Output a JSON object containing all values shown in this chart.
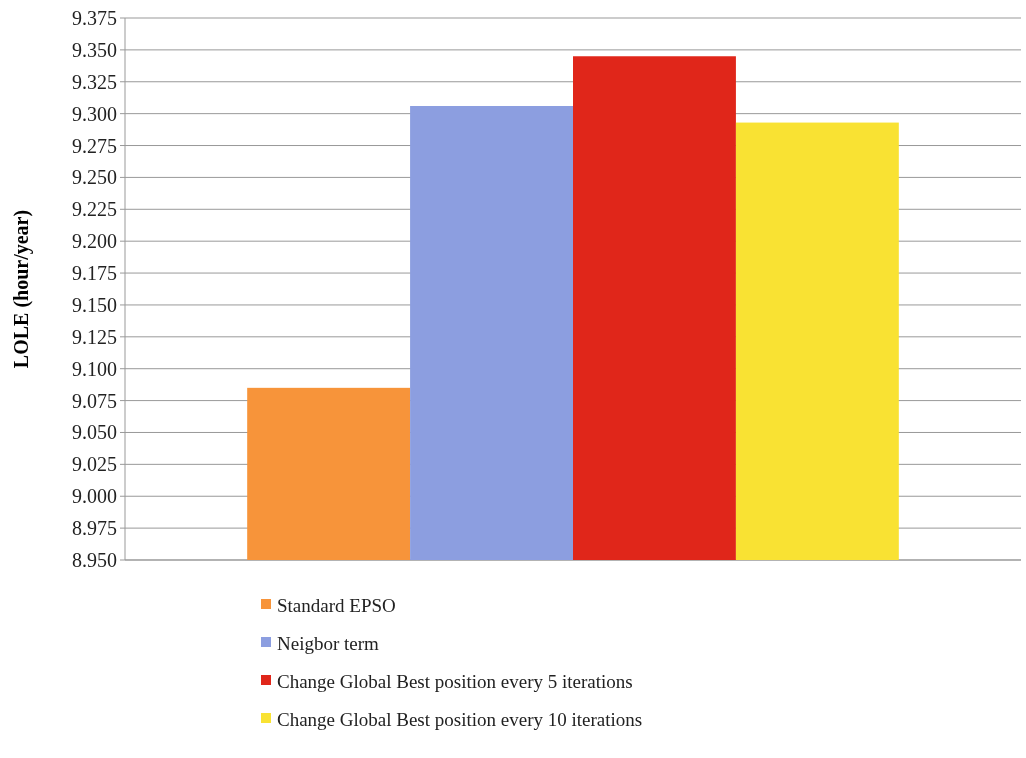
{
  "chart_data": {
    "type": "bar",
    "ylabel": "LOLE  (hour/year)",
    "categories": [
      null
    ],
    "series": [
      {
        "name": "Standard EPSO",
        "color": "#f7943a",
        "values": [
          9.085
        ]
      },
      {
        "name": "Neigbor term",
        "color": "#8c9ee0",
        "values": [
          9.306
        ]
      },
      {
        "name": "Change Global Best position every 5 iterations",
        "color": "#e0261a",
        "values": [
          9.345
        ]
      },
      {
        "name": "Change Global Best position every 10 iterations",
        "color": "#f9e233",
        "values": [
          9.293
        ]
      }
    ],
    "ylim": [
      8.95,
      9.375
    ],
    "yticks": [
      {
        "value": 8.95,
        "label": "8.950"
      },
      {
        "value": 8.975,
        "label": "8.975"
      },
      {
        "value": 9.0,
        "label": "9.000"
      },
      {
        "value": 9.025,
        "label": "9.025"
      },
      {
        "value": 9.05,
        "label": "9.050"
      },
      {
        "value": 9.075,
        "label": "9.075"
      },
      {
        "value": 9.1,
        "label": "9.100"
      },
      {
        "value": 9.125,
        "label": "9.125"
      },
      {
        "value": 9.15,
        "label": "9.150"
      },
      {
        "value": 9.175,
        "label": "9.175"
      },
      {
        "value": 9.2,
        "label": "9.200"
      },
      {
        "value": 9.225,
        "label": "9.225"
      },
      {
        "value": 9.25,
        "label": "9.250"
      },
      {
        "value": 9.275,
        "label": "9.275"
      },
      {
        "value": 9.3,
        "label": "9.300"
      },
      {
        "value": 9.325,
        "label": "9.325"
      },
      {
        "value": 9.35,
        "label": "9.350"
      },
      {
        "value": 9.375,
        "label": "9.375"
      }
    ],
    "grid": "y",
    "legend": "bottom"
  }
}
